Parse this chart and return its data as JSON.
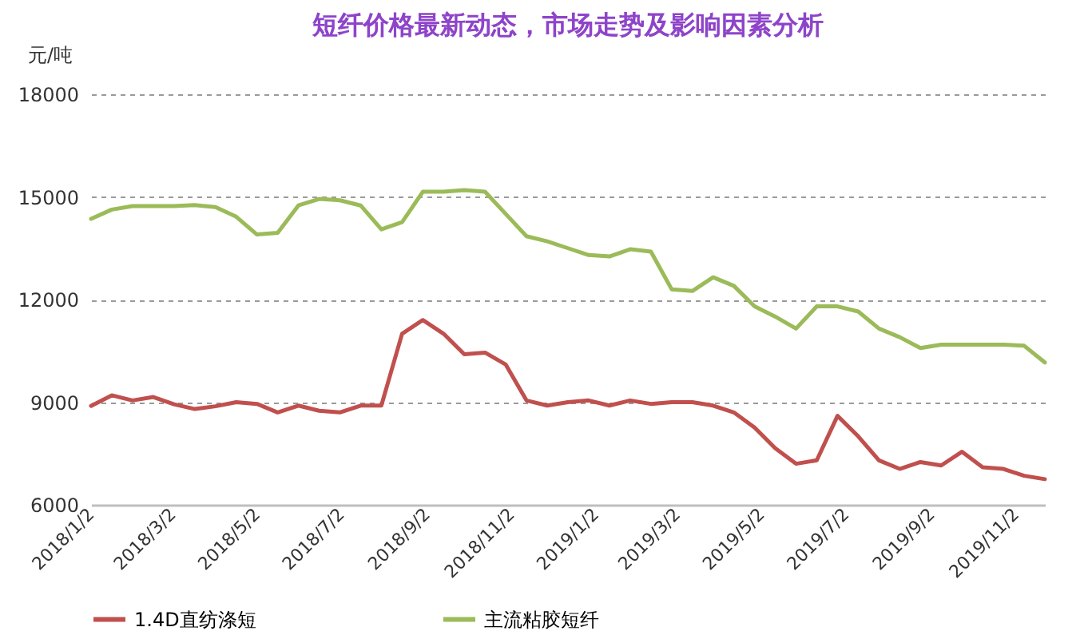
{
  "chart_data": {
    "type": "line",
    "title": "短纤价格最新动态，市场走势及影响因素分析",
    "ylabel": "元/吨",
    "x": [
      "2018-01-02",
      "2018-01-17",
      "2018-02-01",
      "2018-02-16",
      "2018-03-03",
      "2018-03-18",
      "2018-04-02",
      "2018-04-17",
      "2018-05-02",
      "2018-05-17",
      "2018-06-01",
      "2018-06-16",
      "2018-07-01",
      "2018-07-16",
      "2018-07-31",
      "2018-08-15",
      "2018-08-30",
      "2018-09-14",
      "2018-09-29",
      "2018-10-14",
      "2018-10-29",
      "2018-11-13",
      "2018-11-28",
      "2018-12-13",
      "2018-12-28",
      "2019-01-12",
      "2019-01-27",
      "2019-02-11",
      "2019-02-26",
      "2019-03-13",
      "2019-03-28",
      "2019-04-12",
      "2019-04-27",
      "2019-05-12",
      "2019-05-27",
      "2019-06-11",
      "2019-06-26",
      "2019-07-11",
      "2019-07-26",
      "2019-08-10",
      "2019-08-25",
      "2019-09-09",
      "2019-09-24",
      "2019-10-09",
      "2019-10-24",
      "2019-11-08",
      "2019-11-23"
    ],
    "series": [
      {
        "name": "1.4D直纺涤短",
        "color": "#c0504d",
        "values": [
          8890,
          9200,
          9050,
          9150,
          8940,
          8800,
          8880,
          9000,
          8950,
          8700,
          8900,
          8750,
          8700,
          8900,
          8900,
          11000,
          11400,
          11000,
          10400,
          10450,
          10100,
          9050,
          8900,
          9000,
          9050,
          8900,
          9050,
          8950,
          9000,
          9000,
          8900,
          8700,
          8260,
          7650,
          7200,
          7300,
          8600,
          8000,
          7300,
          7050,
          7250,
          7150,
          7550,
          7100,
          7050,
          6850,
          6750
        ]
      },
      {
        "name": "主流粘胶短纤",
        "color": "#9bbb59",
        "values": [
          14360,
          14630,
          14730,
          14730,
          14730,
          14760,
          14700,
          14420,
          13900,
          13950,
          14750,
          14940,
          14900,
          14750,
          14050,
          14260,
          15150,
          15150,
          15200,
          15150,
          14500,
          13850,
          13700,
          13500,
          13300,
          13260,
          13470,
          13400,
          12300,
          12250,
          12650,
          12400,
          11800,
          11500,
          11150,
          11800,
          11800,
          11650,
          11150,
          10900,
          10580,
          10680,
          10680,
          10680,
          10680,
          10650,
          10160
        ]
      }
    ],
    "xlim": [
      "2018-01-02",
      "2019-11-23"
    ],
    "xticks": [
      {
        "value": "2018-01-02",
        "label": "2018/1/2"
      },
      {
        "value": "2018-03-02",
        "label": "2018/3/2"
      },
      {
        "value": "2018-05-02",
        "label": "2018/5/2"
      },
      {
        "value": "2018-07-02",
        "label": "2018/7/2"
      },
      {
        "value": "2018-09-02",
        "label": "2018/9/2"
      },
      {
        "value": "2018-11-02",
        "label": "2018/11/2"
      },
      {
        "value": "2019-01-02",
        "label": "2019/1/2"
      },
      {
        "value": "2019-03-02",
        "label": "2019/3/2"
      },
      {
        "value": "2019-05-02",
        "label": "2019/5/2"
      },
      {
        "value": "2019-07-02",
        "label": "2019/7/2"
      },
      {
        "value": "2019-09-02",
        "label": "2019/9/2"
      },
      {
        "value": "2019-11-02",
        "label": "2019/11/2"
      }
    ],
    "ylim": [
      6000,
      18000
    ],
    "yticks": [
      6000,
      9000,
      12000,
      15000,
      18000
    ],
    "grid": "y",
    "legend": "bottom",
    "line_style": "solid"
  }
}
